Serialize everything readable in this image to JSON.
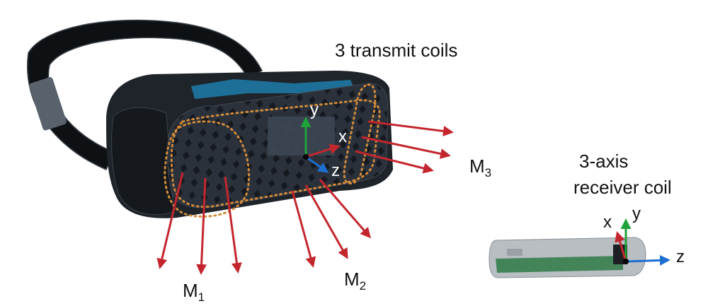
{
  "labels": {
    "transmit": "3 transmit coils",
    "receiver_line1": "3-axis",
    "receiver_line2": "receiver coil",
    "m1_base": "M",
    "m1_sub": "1",
    "m2_base": "M",
    "m2_sub": "2",
    "m3_base": "M",
    "m3_sub": "3"
  },
  "headset_axes": {
    "x": "x",
    "y": "y",
    "z": "z"
  },
  "receiver_axes": {
    "x": "x",
    "y": "y",
    "z": "z"
  },
  "colors": {
    "arrow_red": "#c4262e",
    "axis_green": "#1fa33a",
    "axis_blue": "#1f6fd1",
    "coil_dots": "#d08a3a",
    "headset_body": "#1f242b",
    "faceplate": "#2c3440",
    "strap_blue": "#1e6f98",
    "receiver_case": "#b9bec2",
    "receiver_pcb": "#2f7a46"
  }
}
